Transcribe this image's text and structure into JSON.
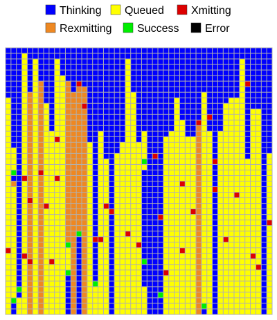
{
  "chart_data": {
    "type": "heatmap",
    "title": "",
    "grid": true,
    "legend_placement": "top",
    "states": [
      {
        "key": "T",
        "label": "Thinking",
        "color": "#0000ff"
      },
      {
        "key": "Q",
        "label": "Queued",
        "color": "#ffff00"
      },
      {
        "key": "X",
        "label": "Xmitting",
        "color": "#dd0000"
      },
      {
        "key": "R",
        "label": "Rexmitting",
        "color": "#ee8822"
      },
      {
        "key": "S",
        "label": "Success",
        "color": "#00ee00"
      },
      {
        "key": "E",
        "label": "Error",
        "color": "#000000"
      }
    ],
    "rows": 48,
    "columns": 49,
    "cells": [
      "TTTTTTTTTTTTTTTTTTTTTTTTTTTTTTTTTTTTTTTTTTTTTTTTT",
      "TTTQTTTTTTTTTTTTTTTTTTTTTTTTTTTTTTTTTTTTTTTTTTTTT",
      "TTTQTQTTTQTTTTTTTTTTTTQTTTTTTTTTTTTTTTTTTTTQTTTTT",
      "TTTQTQTTTQTTTTTTTTTTTTQTTTTTTTTTTTTTTTTTTTTQTTTTT",
      "TTTQTQTTTQTTTTTTTTTTTTQTTTTTTTTTTTTTTTTTTTTQTTTTT",
      "TTTQTQTTTQQTTTTTTTTTTTQTTTTTTTTTTTTTTTTTTTTQTTTTT",
      "TTTQTQRTTQQRTXTTTTTTTTQTTTTTTTTTTTTTTTTTTTTQTTTTT",
      "TTTQTQRTTQQRTRRTTTTTTTQTTTTTTTTTTTTTTTTTTTTQTTTTT",
      "TTTQRQRTTQQRRRRTTTTTTTQQTTTTTTTTTTTTQTTTTTTQTTTTT",
      "QTTQRQRTTQQRRRRTTTTTTTQQTTTTTTTQTTTTQTTTTQQQTTTTT",
      "QTTQRQRQTQQRRRRTTTTTTTQQTTTTTTTQTTTTQTTTQQQQTTTTT",
      "QTTQRQRQTQQRRRRTTTTTTTQQTTTTTTTQTTTTQTTTQQQQTQQTT",
      "QTTQRQRQTQQRRRRTTTTTTTQQTTTTTTTQTTTTQTTTQQQQTQQTT",
      "QTTQRQRQTQQRRRRTTTTTTTQQTTTTTTTQQTTXQTTTQQQQTQQTT",
      "QTTQRQRQTQQRRRRTTTTTTTQQTTTTTTTQQTTRQTTTQQQQTQQTT",
      "QTTQRQRQQQQRRRRTTQTTTTQQTQTTTTQQQTTRQQTQQQQQTQQTT",
      "QTTQRQRQQQQRRRRTTQTTTTQQTQTTTQQQQQQRQQTQQQQQTQQTT",
      "QTTQRQRQQQQRRRRQTQTTTQQQQQTTTQQQQQQRQQTQQQQQTQQTT",
      "QQTQRQRQQQQRRRRQTQTTTQQQQQTTTQQQQQQRQQTQQQQQTQQTT",
      "QQTQRQRQQQQRRRRQTQTTQQQQQQTTTQQQQQQRQQTQQQQQTQQTQ",
      "QQTQRQRQQQQRRRRQTQQTQQQQQQTTTQQQQQQRQQTQQQQQQQQTQ",
      "QQTQRQRQQQQRRRRQTQQTQQQQQQTTTQQQQQQRQQTQQQQQQQQTQ",
      "QQTQRQRQQQQRRRRQTQQTQQQQQQTTTQQQQQQRQQTQQQQQQQQTQ",
      "QQTQRQRQQQQRRRRQTQQTQQQQQQTTTQQQQQQRQQTQQQQQQQQTQ",
      "QQTQRQRQQQQRRRRQTQQTQQQQQQTTTQQQQQQRQQTQQQQQQQQTQ",
      "QQTQRQRQQQQRRRRQTQQTQQQQQQTTTQQQQQQRQQTQQQQQQQQTQ",
      "QQTQRQRQQQQRRRRQTQQTQQQQQQTTTQQQQQQRQQTQQQQQQQQTQ",
      "QQTQRQRQQQQRRRRQTQQTQQQQQQTTTQQQQQQRQQTQQQQQQQQTQ",
      "QQTQRQRQQQQRRRRQTQQTQQQQQQTTTQQQQQQRQQTQQQQQQQQTQ",
      "QQTQRQRQQQQRRRRQTQQTQQQQQQTTTQQQQQQRQQTQQQQQQQQTQ",
      "QQTQRQRQQQQRRRRQTQQTQQQQQQTTTQQQQQQRQQTQQQQQQQQTQ",
      "QQTQRQRQQQQRRRRQTQQTQQQQQQTTTQQQQQQRQQTQQQQQQQQTQ",
      "QQTQRQRQQQQRRRRQTQQTQQQQQQTTTQQQQQQRQQTQQQQQQQQTQ",
      "QQTQRQRQQQQRRRRQTQQTQQQQQQTTTQQQQQQRQQTQQQQQQQQTQ",
      "QQTQRQRQQQQRRRRQTQQTQQQQQQTTTQQQQQQRQQTQQQQQQQQTQ",
      "QQTQRQRQQQQRRRRQTQQTQQQQQQTTTQQQQQQRQQTQQQQQQQQTQ",
      "QQTQRQRQQQQRRRRQTQQTQQQQQQTTTQQQQQQRQQTQQQQQQQQTQ",
      "QQTQRQRQQQQRRRRQTQQTQQQQQQTTTQQQQQQRQQTQQQQQQQQTQ",
      "QQTQRQRQQQQRRRRQTQQTQQQQQQTTTQQQQQQRQQTQQQQQQQQTQ",
      "QQTQRQRQQQQRRRRQTQQTQQQQQQTTTQQQQQQRQQTQQQQQQQQTQ",
      "QQTQRQRQQQQRRRRQTQQTQQQQQQTTTQQQQQQRQQTQQQQQQQQTQ",
      "QQTQRQRQQQQRRRRQTQQTQQQQQQTTTQQQQQQRQQTQQQQQQQQTQ",
      "QQTQRQRQQQQRRRRQTQQTQQQQQQTTTQQQQQQRQQTQQQQQQQQTQ",
      "QQTQRQRQQQQRRRRQTQQTQQQQQQTTTQQQQQQRQQTQQQQQQQQTQ",
      "QQTQRQRQQQQRRRRQTQQTQQQQQQTTTQQQQQQRQQTQQQQQQQQTQ",
      "QQTQRQRQQQQRRRRQTQQTQQQQQQTTTQQQQQQRQQTQQQQQQQQTQ",
      "QQTQRQRQQQQRRRRQTQQTQQQQQQTTTQQQQQQRQQTQQQQQQQQTQ",
      "QQTQRQRQQQQRRRRQTQQTQQQQQQTTTQQQQQQRQQTQQQQQQQQTQ"
    ],
    "overrides": [
      {
        "row": 22,
        "col": 1,
        "state": "S"
      },
      {
        "row": 23,
        "col": 1,
        "state": "T"
      },
      {
        "row": 24,
        "col": 1,
        "state": "R"
      },
      {
        "row": 20,
        "col": 25,
        "state": "S"
      },
      {
        "row": 22,
        "col": 25,
        "state": "T"
      },
      {
        "row": 23,
        "col": 25,
        "state": "T"
      },
      {
        "row": 24,
        "col": 25,
        "state": "T"
      },
      {
        "row": 25,
        "col": 25,
        "state": "T"
      },
      {
        "row": 26,
        "col": 25,
        "state": "T"
      },
      {
        "row": 27,
        "col": 25,
        "state": "T"
      },
      {
        "row": 28,
        "col": 25,
        "state": "T"
      },
      {
        "row": 29,
        "col": 25,
        "state": "T"
      },
      {
        "row": 30,
        "col": 25,
        "state": "T"
      },
      {
        "row": 31,
        "col": 25,
        "state": "T"
      },
      {
        "row": 32,
        "col": 25,
        "state": "T"
      },
      {
        "row": 33,
        "col": 25,
        "state": "T"
      },
      {
        "row": 34,
        "col": 25,
        "state": "T"
      },
      {
        "row": 35,
        "col": 25,
        "state": "T"
      },
      {
        "row": 36,
        "col": 25,
        "state": "T"
      },
      {
        "row": 37,
        "col": 25,
        "state": "T"
      },
      {
        "row": 38,
        "col": 25,
        "state": "S"
      },
      {
        "row": 39,
        "col": 25,
        "state": "T"
      },
      {
        "row": 40,
        "col": 25,
        "state": "T"
      },
      {
        "row": 41,
        "col": 25,
        "state": "T"
      },
      {
        "row": 42,
        "col": 25,
        "state": "T"
      },
      {
        "row": 43,
        "col": 25,
        "state": "Q"
      },
      {
        "row": 44,
        "col": 25,
        "state": "Q"
      },
      {
        "row": 45,
        "col": 25,
        "state": "Q"
      },
      {
        "row": 46,
        "col": 25,
        "state": "Q"
      },
      {
        "row": 47,
        "col": 25,
        "state": "Q"
      },
      {
        "row": 33,
        "col": 13,
        "state": "S"
      },
      {
        "row": 34,
        "col": 13,
        "state": "T"
      },
      {
        "row": 35,
        "col": 13,
        "state": "T"
      },
      {
        "row": 36,
        "col": 13,
        "state": "T"
      },
      {
        "row": 37,
        "col": 13,
        "state": "T"
      },
      {
        "row": 38,
        "col": 13,
        "state": "T"
      },
      {
        "row": 39,
        "col": 13,
        "state": "T"
      },
      {
        "row": 40,
        "col": 13,
        "state": "T"
      },
      {
        "row": 41,
        "col": 13,
        "state": "T"
      },
      {
        "row": 42,
        "col": 13,
        "state": "T"
      },
      {
        "row": 43,
        "col": 13,
        "state": "T"
      },
      {
        "row": 44,
        "col": 13,
        "state": "T"
      },
      {
        "row": 45,
        "col": 13,
        "state": "T"
      },
      {
        "row": 46,
        "col": 13,
        "state": "T"
      },
      {
        "row": 47,
        "col": 13,
        "state": "T"
      },
      {
        "row": 35,
        "col": 11,
        "state": "S"
      },
      {
        "row": 36,
        "col": 11,
        "state": "Q"
      },
      {
        "row": 37,
        "col": 11,
        "state": "Q"
      },
      {
        "row": 38,
        "col": 11,
        "state": "Q"
      },
      {
        "row": 39,
        "col": 11,
        "state": "Q"
      },
      {
        "row": 40,
        "col": 11,
        "state": "S"
      },
      {
        "row": 41,
        "col": 11,
        "state": "T"
      },
      {
        "row": 42,
        "col": 11,
        "state": "T"
      },
      {
        "row": 43,
        "col": 11,
        "state": "T"
      },
      {
        "row": 44,
        "col": 11,
        "state": "T"
      },
      {
        "row": 45,
        "col": 11,
        "state": "T"
      },
      {
        "row": 46,
        "col": 11,
        "state": "T"
      },
      {
        "row": 47,
        "col": 11,
        "state": "T"
      },
      {
        "row": 42,
        "col": 16,
        "state": "S"
      },
      {
        "row": 43,
        "col": 16,
        "state": "Q"
      },
      {
        "row": 44,
        "col": 16,
        "state": "Q"
      },
      {
        "row": 45,
        "col": 16,
        "state": "Q"
      },
      {
        "row": 46,
        "col": 16,
        "state": "Q"
      },
      {
        "row": 47,
        "col": 16,
        "state": "Q"
      },
      {
        "row": 43,
        "col": 2,
        "state": "S"
      },
      {
        "row": 44,
        "col": 2,
        "state": "T"
      },
      {
        "row": 45,
        "col": 2,
        "state": "Q"
      },
      {
        "row": 46,
        "col": 2,
        "state": "Q"
      },
      {
        "row": 47,
        "col": 2,
        "state": "Q"
      },
      {
        "row": 45,
        "col": 1,
        "state": "S"
      },
      {
        "row": 46,
        "col": 1,
        "state": "T"
      },
      {
        "row": 47,
        "col": 1,
        "state": "T"
      },
      {
        "row": 44,
        "col": 28,
        "state": "S"
      },
      {
        "row": 45,
        "col": 28,
        "state": "T"
      },
      {
        "row": 46,
        "col": 28,
        "state": "T"
      },
      {
        "row": 47,
        "col": 28,
        "state": "T"
      },
      {
        "row": 46,
        "col": 36,
        "state": "S"
      },
      {
        "row": 47,
        "col": 36,
        "state": "T"
      },
      {
        "row": 23,
        "col": 3,
        "state": "X"
      },
      {
        "row": 22,
        "col": 6,
        "state": "X"
      },
      {
        "row": 23,
        "col": 9,
        "state": "X"
      },
      {
        "row": 24,
        "col": 32,
        "state": "X"
      },
      {
        "row": 25,
        "col": 38,
        "state": "X"
      },
      {
        "row": 26,
        "col": 42,
        "state": "X"
      },
      {
        "row": 27,
        "col": 4,
        "state": "X"
      },
      {
        "row": 28,
        "col": 7,
        "state": "X"
      },
      {
        "row": 28,
        "col": 18,
        "state": "X"
      },
      {
        "row": 29,
        "col": 19,
        "state": "X"
      },
      {
        "row": 29,
        "col": 34,
        "state": "X"
      },
      {
        "row": 30,
        "col": 28,
        "state": "X"
      },
      {
        "row": 31,
        "col": 48,
        "state": "X"
      },
      {
        "row": 33,
        "col": 22,
        "state": "X"
      },
      {
        "row": 34,
        "col": 16,
        "state": "X"
      },
      {
        "row": 34,
        "col": 17,
        "state": "X"
      },
      {
        "row": 34,
        "col": 40,
        "state": "X"
      },
      {
        "row": 35,
        "col": 24,
        "state": "X"
      },
      {
        "row": 36,
        "col": 0,
        "state": "X"
      },
      {
        "row": 36,
        "col": 32,
        "state": "X"
      },
      {
        "row": 37,
        "col": 3,
        "state": "X"
      },
      {
        "row": 37,
        "col": 45,
        "state": "X"
      },
      {
        "row": 38,
        "col": 4,
        "state": "X"
      },
      {
        "row": 38,
        "col": 8,
        "state": "X"
      },
      {
        "row": 39,
        "col": 46,
        "state": "X"
      },
      {
        "row": 40,
        "col": 29,
        "state": "X"
      },
      {
        "row": 6,
        "col": 44,
        "state": "X"
      },
      {
        "row": 10,
        "col": 14,
        "state": "X"
      },
      {
        "row": 19,
        "col": 27,
        "state": "X"
      },
      {
        "row": 20,
        "col": 38,
        "state": "X"
      },
      {
        "row": 16,
        "col": 9,
        "state": "X"
      },
      {
        "row": 12,
        "col": 37,
        "state": "X"
      }
    ]
  },
  "legend": {
    "items": [
      {
        "label": "Thinking",
        "color": "#0000ff"
      },
      {
        "label": "Queued",
        "color": "#ffff00"
      },
      {
        "label": "Xmitting",
        "color": "#dd0000"
      },
      {
        "label": "Rexmitting",
        "color": "#ee8822"
      },
      {
        "label": "Success",
        "color": "#00ee00"
      },
      {
        "label": "Error",
        "color": "#000000"
      }
    ]
  }
}
